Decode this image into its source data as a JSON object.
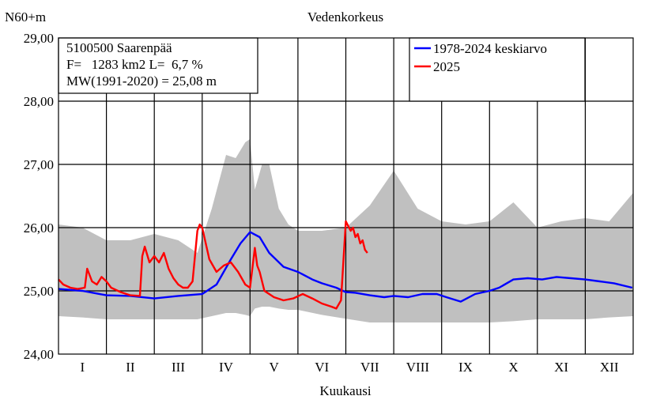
{
  "chart_data": {
    "type": "line",
    "title": "Vedenkorkeus",
    "ylabel": "N60+m",
    "xlabel": "Kuukausi",
    "ylim": [
      24.0,
      29.0
    ],
    "y_ticks": [
      "24,00",
      "25,00",
      "26,00",
      "27,00",
      "28,00",
      "29,00"
    ],
    "months": [
      "I",
      "II",
      "III",
      "IV",
      "V",
      "VI",
      "VII",
      "VIII",
      "IX",
      "X",
      "XI",
      "XII"
    ],
    "info": [
      "5100500 Saarenpää",
      "F=   1283 km2 L=  6,7 %",
      "MW(1991-2020) = 25,08 m"
    ],
    "legend_position": "top-right",
    "series": [
      {
        "name": "1978-2024 keskiarvo",
        "color": "#0000ff",
        "x": [
          0,
          0.5,
          1.0,
          1.5,
          2.0,
          2.5,
          3.0,
          3.3,
          3.6,
          3.8,
          4.0,
          4.2,
          4.4,
          4.7,
          5.0,
          5.3,
          5.5,
          5.8,
          6.0,
          6.2,
          6.5,
          6.8,
          7.0,
          7.3,
          7.6,
          7.9,
          8.1,
          8.4,
          8.7,
          9.0,
          9.2,
          9.5,
          9.8,
          10.1,
          10.4,
          10.7,
          11.0,
          11.3,
          11.6,
          11.98
        ],
        "y": [
          25.03,
          25.0,
          24.93,
          24.92,
          24.88,
          24.92,
          24.95,
          25.1,
          25.5,
          25.75,
          25.93,
          25.85,
          25.6,
          25.38,
          25.3,
          25.18,
          25.12,
          25.05,
          24.98,
          24.97,
          24.93,
          24.9,
          24.92,
          24.9,
          24.95,
          24.95,
          24.9,
          24.83,
          24.95,
          25.0,
          25.05,
          25.18,
          25.2,
          25.18,
          25.22,
          25.2,
          25.18,
          25.15,
          25.12,
          25.05
        ]
      },
      {
        "name": "2025",
        "color": "#ff0000",
        "x": [
          0,
          0.1,
          0.25,
          0.4,
          0.55,
          0.6,
          0.7,
          0.8,
          0.9,
          1.0,
          1.1,
          1.3,
          1.5,
          1.7,
          1.75,
          1.8,
          1.9,
          2.0,
          2.1,
          2.2,
          2.3,
          2.4,
          2.5,
          2.6,
          2.7,
          2.8,
          2.9,
          2.95,
          3.0,
          3.15,
          3.3,
          3.45,
          3.6,
          3.75,
          3.9,
          4.0,
          4.1,
          4.15,
          4.2,
          4.3,
          4.5,
          4.7,
          4.9,
          5.1,
          5.3,
          5.5,
          5.7,
          5.8,
          5.9,
          6.0,
          6.1,
          6.15,
          6.2,
          6.25,
          6.3,
          6.35,
          6.4,
          6.45
        ],
        "y": [
          25.18,
          25.1,
          25.05,
          25.03,
          25.05,
          25.35,
          25.15,
          25.1,
          25.22,
          25.15,
          25.05,
          24.98,
          24.93,
          24.92,
          25.55,
          25.7,
          25.45,
          25.55,
          25.45,
          25.6,
          25.35,
          25.2,
          25.1,
          25.05,
          25.05,
          25.15,
          25.95,
          26.05,
          26.0,
          25.5,
          25.3,
          25.4,
          25.45,
          25.3,
          25.1,
          25.05,
          25.68,
          25.4,
          25.3,
          25.0,
          24.9,
          24.85,
          24.88,
          24.95,
          24.88,
          24.8,
          24.75,
          24.72,
          24.85,
          26.1,
          25.95,
          26.0,
          25.85,
          25.9,
          25.75,
          25.8,
          25.65,
          25.6
        ]
      }
    ],
    "range_band": {
      "color": "#c0c0c0",
      "x": [
        0,
        0.5,
        1.0,
        1.5,
        2.0,
        2.5,
        2.9,
        3.2,
        3.5,
        3.7,
        3.9,
        4.0,
        4.1,
        4.25,
        4.4,
        4.6,
        4.8,
        5.0,
        5.5,
        6.0,
        6.5,
        7.0,
        7.5,
        8.0,
        8.5,
        9.0,
        9.5,
        10.0,
        10.5,
        11.0,
        11.5,
        12.0
      ],
      "max": [
        26.05,
        26.0,
        25.8,
        25.8,
        25.9,
        25.8,
        25.6,
        26.3,
        27.15,
        27.1,
        27.35,
        27.4,
        26.6,
        27.0,
        27.0,
        26.3,
        26.05,
        25.95,
        25.95,
        26.0,
        26.35,
        26.9,
        26.3,
        26.1,
        26.05,
        26.1,
        26.4,
        26.0,
        26.1,
        26.15,
        26.1,
        26.55
      ],
      "min": [
        24.6,
        24.58,
        24.55,
        24.55,
        24.55,
        24.55,
        24.55,
        24.6,
        24.65,
        24.65,
        24.62,
        24.6,
        24.72,
        24.75,
        24.75,
        24.72,
        24.7,
        24.7,
        24.62,
        24.56,
        24.5,
        24.5,
        24.5,
        24.5,
        24.5,
        24.5,
        24.52,
        24.55,
        24.55,
        24.55,
        24.58,
        24.6
      ]
    }
  }
}
